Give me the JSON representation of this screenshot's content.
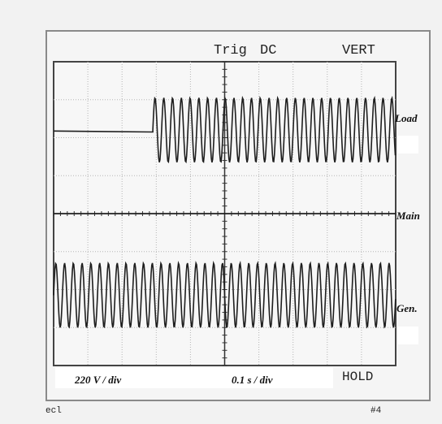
{
  "header": {
    "trigger": "Trig",
    "coupling": "DC",
    "mode": "VERT"
  },
  "footer": {
    "volts_per_div": "220 V / div",
    "time_per_div": "0.1 s / div",
    "hold": "HOLD",
    "corner_left": "ecl",
    "page_number": "#4"
  },
  "traces": [
    {
      "name": "Load"
    },
    {
      "name": "Main"
    },
    {
      "name": "Gen."
    }
  ],
  "colors": {
    "background": "#f2f2f2",
    "screen": "#f7f7f7",
    "grid": "#b5b5b5",
    "trace": "#1e1e1e"
  }
}
